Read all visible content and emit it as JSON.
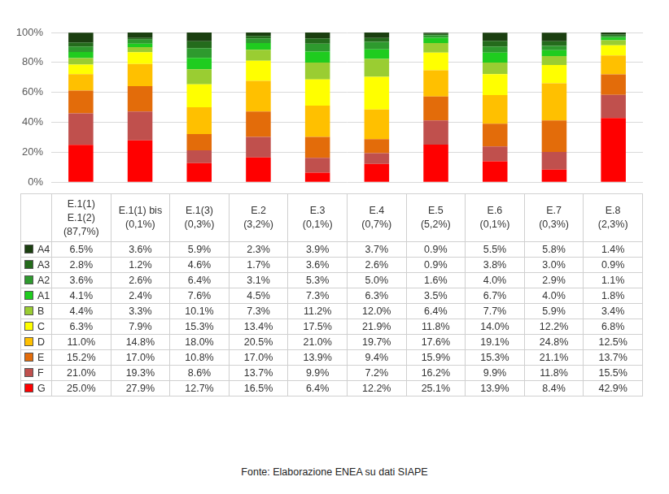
{
  "chart_data": {
    "type": "bar",
    "stacked": true,
    "grid": true,
    "tick_labels": "y",
    "data_labels": false,
    "source": "Fonte: Elaborazione ENEA su dati SIAPE",
    "categories": [
      "E.1(1)\nE.1(2)\n(87,7%)",
      "E.1(1) bis\n(0,1%)",
      "E.1(3)\n(0,3%)",
      "E.2\n(3,2%)",
      "E.3\n(0,1%)",
      "E.4\n(0,7%)",
      "E.5\n(5,2%)",
      "E.6\n(0,1%)",
      "E.7\n(0,3%)",
      "E.8\n(2,3%)"
    ],
    "ylim": [
      0,
      100
    ],
    "yticks": [
      {
        "value": 0,
        "label": "0%"
      },
      {
        "value": 20,
        "label": "20%"
      },
      {
        "value": 40,
        "label": "40%"
      },
      {
        "value": 60,
        "label": "60%"
      },
      {
        "value": 80,
        "label": "80%"
      },
      {
        "value": 100,
        "label": "100%"
      }
    ],
    "series": [
      {
        "name": "A4",
        "color": "#1b3f10",
        "values": [
          6.5,
          3.6,
          5.9,
          2.3,
          3.9,
          3.7,
          0.9,
          5.5,
          5.8,
          1.4
        ],
        "value_labels": [
          "6.5%",
          "3.6%",
          "5.9%",
          "2.3%",
          "3.9%",
          "3.7%",
          "0.9%",
          "5.5%",
          "5.8%",
          "1.4%"
        ]
      },
      {
        "name": "A3",
        "color": "#246b1c",
        "values": [
          2.8,
          1.2,
          4.6,
          1.7,
          3.6,
          2.6,
          0.9,
          3.8,
          3.0,
          0.9
        ],
        "value_labels": [
          "2.8%",
          "1.2%",
          "4.6%",
          "1.7%",
          "3.6%",
          "2.6%",
          "0.9%",
          "3.8%",
          "3.0%",
          "0.9%"
        ]
      },
      {
        "name": "A2",
        "color": "#2e9a2e",
        "values": [
          3.6,
          2.6,
          6.4,
          3.1,
          5.3,
          5.0,
          1.6,
          4.0,
          2.9,
          1.1
        ],
        "value_labels": [
          "3.6%",
          "2.6%",
          "6.4%",
          "3.1%",
          "5.3%",
          "5.0%",
          "1.6%",
          "4.0%",
          "2.9%",
          "1.1%"
        ]
      },
      {
        "name": "A1",
        "color": "#1fcc1f",
        "values": [
          4.1,
          2.4,
          7.6,
          4.5,
          7.3,
          6.3,
          3.5,
          6.7,
          4.0,
          1.8
        ],
        "value_labels": [
          "4.1%",
          "2.4%",
          "7.6%",
          "4.5%",
          "7.3%",
          "6.3%",
          "3.5%",
          "6.7%",
          "4.0%",
          "1.8%"
        ]
      },
      {
        "name": "B",
        "color": "#9acd32",
        "values": [
          4.4,
          3.3,
          10.1,
          7.3,
          11.2,
          12.0,
          6.4,
          7.7,
          5.9,
          3.4
        ],
        "value_labels": [
          "4.4%",
          "3.3%",
          "10.1%",
          "7.3%",
          "11.2%",
          "12.0%",
          "6.4%",
          "7.7%",
          "5.9%",
          "3.4%"
        ]
      },
      {
        "name": "C",
        "color": "#ffff00",
        "values": [
          6.3,
          7.9,
          15.3,
          13.4,
          17.5,
          21.9,
          11.8,
          14.0,
          12.2,
          6.8
        ],
        "value_labels": [
          "6.3%",
          "7.9%",
          "15.3%",
          "13.4%",
          "17.5%",
          "21.9%",
          "11.8%",
          "14.0%",
          "12.2%",
          "6.8%"
        ]
      },
      {
        "name": "D",
        "color": "#ffc000",
        "values": [
          11.0,
          14.8,
          18.0,
          20.5,
          21.0,
          19.7,
          17.6,
          19.1,
          24.8,
          12.5
        ],
        "value_labels": [
          "11.0%",
          "14.8%",
          "18.0%",
          "20.5%",
          "21.0%",
          "19.7%",
          "17.6%",
          "19.1%",
          "24.8%",
          "12.5%"
        ]
      },
      {
        "name": "E",
        "color": "#e36c0a",
        "values": [
          15.2,
          17.0,
          10.8,
          17.0,
          13.9,
          9.4,
          15.9,
          15.3,
          21.1,
          13.7
        ],
        "value_labels": [
          "15.2%",
          "17.0%",
          "10.8%",
          "17.0%",
          "13.9%",
          "9.4%",
          "15.9%",
          "15.3%",
          "21.1%",
          "13.7%"
        ]
      },
      {
        "name": "F",
        "color": "#c0504d",
        "values": [
          21.0,
          19.3,
          8.6,
          13.7,
          9.9,
          7.2,
          16.2,
          9.9,
          11.8,
          15.5
        ],
        "value_labels": [
          "21.0%",
          "19.3%",
          "8.6%",
          "13.7%",
          "9.9%",
          "7.2%",
          "16.2%",
          "9.9%",
          "11.8%",
          "15.5%"
        ]
      },
      {
        "name": "G",
        "color": "#ff0000",
        "values": [
          25.0,
          27.9,
          12.7,
          16.5,
          6.4,
          12.2,
          25.1,
          13.9,
          8.4,
          42.9
        ],
        "value_labels": [
          "25.0%",
          "27.9%",
          "12.7%",
          "16.5%",
          "6.4%",
          "12.2%",
          "25.1%",
          "13.9%",
          "8.4%",
          "42.9%"
        ]
      }
    ]
  }
}
